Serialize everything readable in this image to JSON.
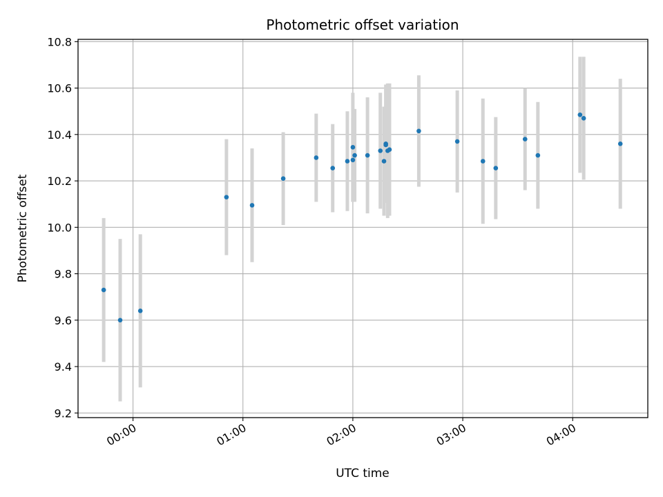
{
  "chart_data": {
    "type": "scatter",
    "title": "Photometric offset variation",
    "xlabel": "UTC time",
    "ylabel": "Photometric offset",
    "xlim": [
      "23:30",
      "04:41"
    ],
    "ylim": [
      9.18,
      10.81
    ],
    "x_ticks": [
      "00:00",
      "01:00",
      "02:00",
      "03:00",
      "04:00"
    ],
    "y_ticks": [
      "9.2",
      "9.4",
      "9.6",
      "9.8",
      "10.0",
      "10.2",
      "10.4",
      "10.6",
      "10.8"
    ],
    "grid": true,
    "colors": {
      "marker": "#1f77b4",
      "errorbar": "#d3d3d3",
      "grid": "#b0b0b0"
    },
    "points": [
      {
        "x": "23:44",
        "y": 9.73,
        "err": 0.31
      },
      {
        "x": "23:53",
        "y": 9.6,
        "err": 0.35
      },
      {
        "x": "00:04",
        "y": 9.64,
        "err": 0.33
      },
      {
        "x": "00:51",
        "y": 10.13,
        "err": 0.25
      },
      {
        "x": "01:05",
        "y": 10.095,
        "err": 0.245
      },
      {
        "x": "01:22",
        "y": 10.21,
        "err": 0.2
      },
      {
        "x": "01:40",
        "y": 10.3,
        "err": 0.19
      },
      {
        "x": "01:49",
        "y": 10.255,
        "err": 0.19
      },
      {
        "x": "01:57",
        "y": 10.285,
        "err": 0.215
      },
      {
        "x": "02:00",
        "y": 10.345,
        "err": 0.235
      },
      {
        "x": "02:00",
        "y": 10.29,
        "err": 0.18
      },
      {
        "x": "02:01",
        "y": 10.31,
        "err": 0.2
      },
      {
        "x": "02:08",
        "y": 10.31,
        "err": 0.25
      },
      {
        "x": "02:15",
        "y": 10.33,
        "err": 0.25
      },
      {
        "x": "02:17",
        "y": 10.285,
        "err": 0.235
      },
      {
        "x": "02:18",
        "y": 10.36,
        "err": 0.255
      },
      {
        "x": "02:18",
        "y": 10.355,
        "err": 0.24
      },
      {
        "x": "02:19",
        "y": 10.33,
        "err": 0.29
      },
      {
        "x": "02:20",
        "y": 10.335,
        "err": 0.285
      },
      {
        "x": "02:36",
        "y": 10.415,
        "err": 0.24
      },
      {
        "x": "02:57",
        "y": 10.37,
        "err": 0.22
      },
      {
        "x": "03:11",
        "y": 10.285,
        "err": 0.27
      },
      {
        "x": "03:18",
        "y": 10.255,
        "err": 0.22
      },
      {
        "x": "03:34",
        "y": 10.38,
        "err": 0.22
      },
      {
        "x": "03:41",
        "y": 10.31,
        "err": 0.23
      },
      {
        "x": "04:04",
        "y": 10.485,
        "err": 0.25
      },
      {
        "x": "04:06",
        "y": 10.47,
        "err": 0.265
      },
      {
        "x": "04:26",
        "y": 10.36,
        "err": 0.28
      }
    ]
  }
}
